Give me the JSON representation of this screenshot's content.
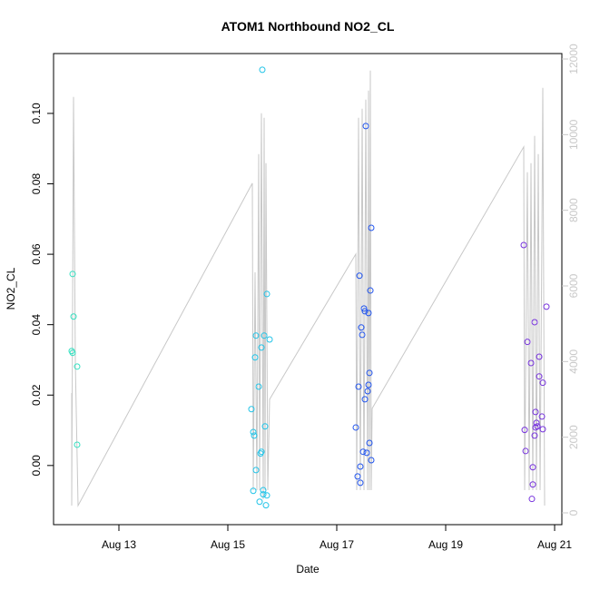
{
  "chart_data": {
    "type": "scatter",
    "title": "ATOM1 Northbound NO2_CL",
    "x_label": "Date",
    "y_label": "NO2_CL",
    "xlim": [
      11.8,
      21.133
    ],
    "xticks": [
      {
        "value": 13,
        "label": "Aug 13"
      },
      {
        "value": 15,
        "label": "Aug 15"
      },
      {
        "value": 17,
        "label": "Aug 17"
      },
      {
        "value": 19,
        "label": "Aug 19"
      },
      {
        "value": 21,
        "label": "Aug 21"
      }
    ],
    "ylim": [
      -0.0168,
      0.117
    ],
    "yticks": [
      {
        "value": 0,
        "label": "0.00"
      },
      {
        "value": 0.02,
        "label": "0.02"
      },
      {
        "value": 0.04,
        "label": "0.04"
      },
      {
        "value": 0.06,
        "label": "0.06"
      },
      {
        "value": 0.08,
        "label": "0.08"
      },
      {
        "value": 0.1,
        "label": "0.10"
      }
    ],
    "y2lim": [
      -312,
      12144
    ],
    "y2ticks": [
      0,
      2000,
      4000,
      6000,
      8000,
      10000,
      12000
    ],
    "y2_color": "#c8c8c8",
    "series": [
      {
        "type": "line",
        "axis": "y2",
        "color": "#c8c8c8",
        "x": [
          12.133,
          12.133,
          12.167,
          12.2,
          12.25,
          15.45,
          15.467,
          15.5,
          15.533,
          15.567,
          15.583,
          15.617,
          15.65,
          15.667,
          15.683,
          15.7,
          15.733,
          15.767,
          17.35,
          17.367,
          17.4,
          17.433,
          17.467,
          17.5,
          17.533,
          17.567,
          17.583,
          17.6,
          17.617,
          17.633,
          17.65,
          20.433,
          20.45,
          20.5,
          20.533,
          20.567,
          20.6,
          20.633,
          20.667,
          20.7,
          20.733,
          20.767,
          20.783,
          20.817
        ],
        "values": [
          3169,
          192,
          10996,
          3962,
          192,
          8715,
          600,
          6363,
          600,
          9484,
          600,
          10564,
          360,
          10444,
          600,
          9244,
          600,
          3001,
          6843,
          600,
          10444,
          600,
          10684,
          600,
          10924,
          600,
          11164,
          600,
          11693,
          600,
          2761,
          9676,
          600,
          9004,
          600,
          9244,
          600,
          9964,
          600,
          9484,
          600,
          7323,
          11236,
          192
        ]
      },
      {
        "color": "#33e0c0",
        "x": [
          12.15,
          12.167,
          12.133,
          12.15,
          12.233,
          12.233
        ],
        "values": [
          0.0544,
          0.0423,
          0.0325,
          0.032,
          0.0281,
          0.0059
        ]
      },
      {
        "color": "#22c4e8",
        "x": [
          15.633,
          15.717,
          15.517,
          15.667,
          15.767,
          15.617,
          15.5,
          15.567,
          15.433,
          15.467,
          15.483,
          15.683,
          15.617,
          15.6,
          15.517,
          15.467,
          15.65,
          15.65,
          15.717,
          15.583,
          15.7
        ],
        "values": [
          0.1124,
          0.0487,
          0.0369,
          0.0369,
          0.0358,
          0.0335,
          0.0307,
          0.0224,
          0.016,
          0.0095,
          0.0085,
          0.0111,
          0.0039,
          0.0034,
          -0.0013,
          -0.0072,
          -0.007,
          -0.0082,
          -0.0085,
          -0.0103,
          -0.0113
        ]
      },
      {
        "color": "#2255ee",
        "x": [
          17.533,
          17.633,
          17.417,
          17.617,
          17.5,
          17.517,
          17.583,
          17.45,
          17.467,
          17.6,
          17.4,
          17.583,
          17.567,
          17.517,
          17.35,
          17.6,
          17.483,
          17.55,
          17.633,
          17.433,
          17.383,
          17.433
        ],
        "values": [
          0.0964,
          0.0675,
          0.0539,
          0.0497,
          0.0446,
          0.0438,
          0.0433,
          0.0392,
          0.0371,
          0.0263,
          0.0224,
          0.0229,
          0.0211,
          0.0188,
          0.0108,
          0.0064,
          0.0039,
          0.0036,
          0.0015,
          -0.0003,
          -0.0031,
          -0.0049
        ]
      },
      {
        "color": "#7733dd",
        "x": [
          20.433,
          20.85,
          20.633,
          20.5,
          20.717,
          20.567,
          20.717,
          20.783,
          20.65,
          20.767,
          20.667,
          20.45,
          20.783,
          20.65,
          20.683,
          20.633,
          20.467,
          20.6,
          20.6,
          20.583
        ],
        "values": [
          0.0626,
          0.0451,
          0.0407,
          0.0351,
          0.0309,
          0.0291,
          0.0253,
          0.0235,
          0.0152,
          0.0139,
          0.0121,
          0.0101,
          0.0103,
          0.0108,
          0.0111,
          0.0085,
          0.0041,
          -0.0005,
          -0.0054,
          -0.0095
        ]
      }
    ]
  }
}
